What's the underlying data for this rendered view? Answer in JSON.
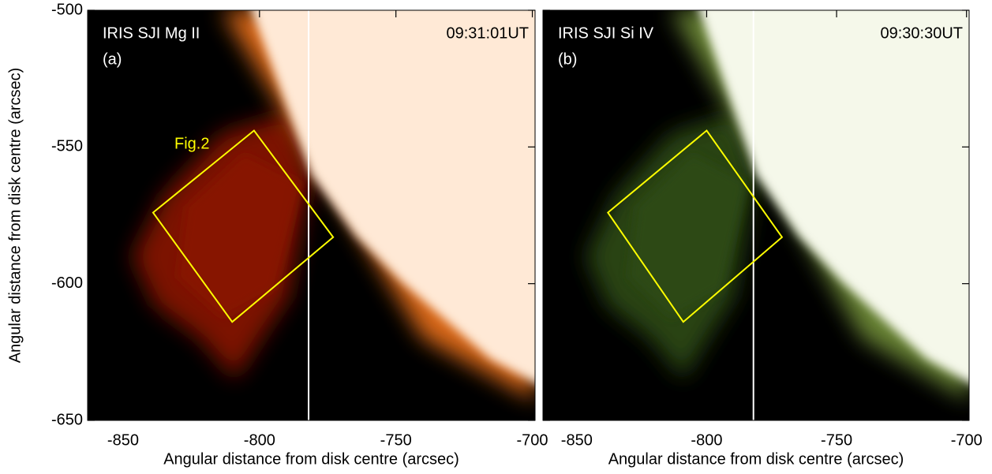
{
  "chart_data": [
    {
      "type": "image",
      "title": "IRIS SJI Mg II",
      "panel_label": "(a)",
      "time": "09:31:01UT",
      "annotation": "Fig.2",
      "xlabel": "Angular distance from disk centre (arcsec)",
      "ylabel": "Angular distance from disk centre (arcsec)",
      "xlim": [
        -863,
        -699
      ],
      "ylim": [
        -650,
        -500
      ],
      "xticks": [
        -850,
        -800,
        -750,
        -700
      ],
      "yticks": [
        -650,
        -600,
        -550,
        -500
      ],
      "ytick_labels": true,
      "vline": -782,
      "vline_color": "#ffffff",
      "box": {
        "x": [
          -802,
          -773,
          -810,
          -839
        ],
        "y": [
          -544,
          -583,
          -614,
          -574
        ]
      },
      "box_color": "#ffff00",
      "colormap": [
        "#000000",
        "#8a1800",
        "#ff7a1e",
        "#ffe9d6"
      ]
    },
    {
      "type": "image",
      "title": "IRIS SJI Si IV",
      "panel_label": "(b)",
      "time": "09:30:30UT",
      "xlabel": "Angular distance from disk centre (arcsec)",
      "xlim": [
        -863,
        -699
      ],
      "ylim": [
        -650,
        -500
      ],
      "xticks": [
        -850,
        -800,
        -750,
        -700
      ],
      "yticks": [
        -650,
        -600,
        -550,
        -500
      ],
      "ytick_labels": false,
      "vline": -782,
      "vline_color": "#ffffff",
      "box": {
        "x": [
          -800,
          -771,
          -809,
          -838
        ],
        "y": [
          -544,
          -583,
          -614,
          -574
        ]
      },
      "box_color": "#ffff00",
      "colormap": [
        "#000000",
        "#2f4c18",
        "#7a9a3c",
        "#f5f8ea"
      ]
    }
  ]
}
